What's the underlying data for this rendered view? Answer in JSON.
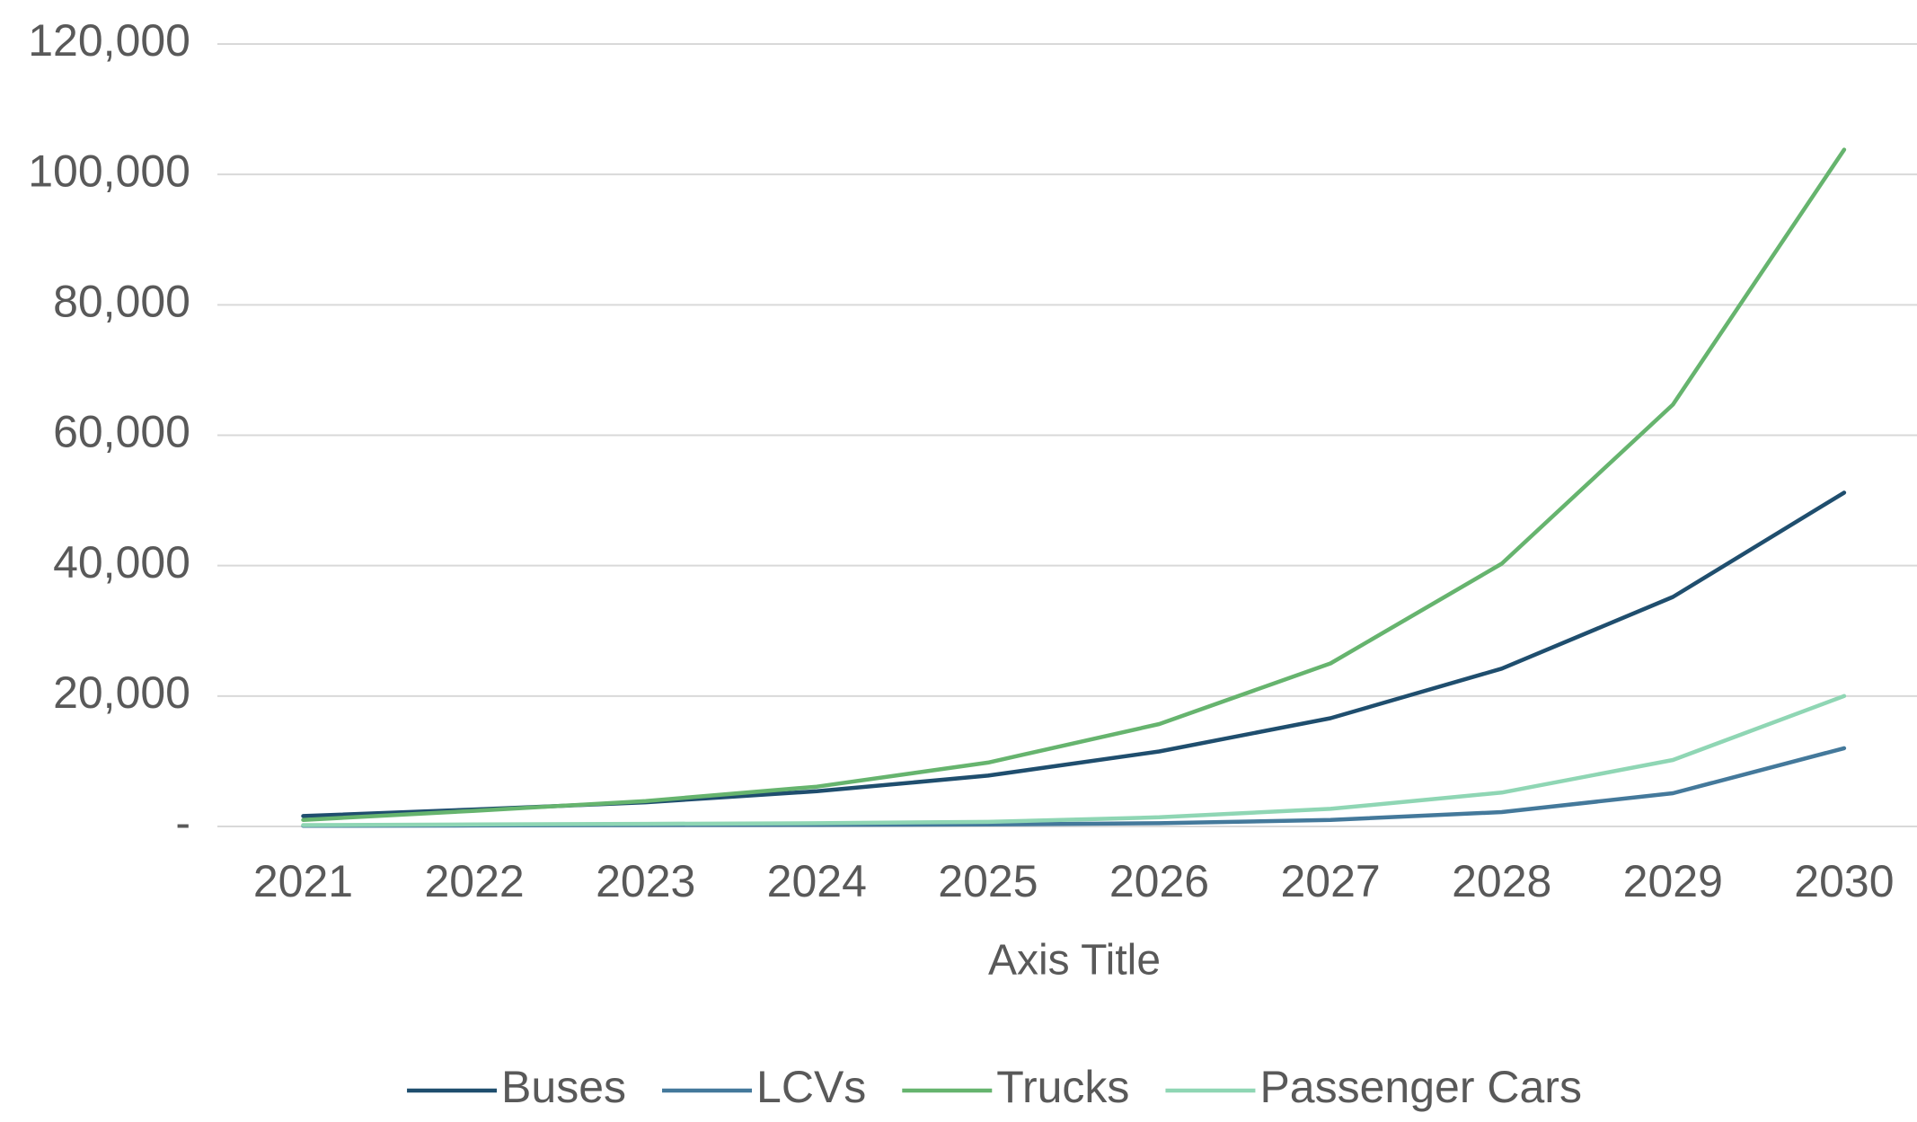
{
  "chart_data": {
    "type": "line",
    "x_axis_title": "Axis Title",
    "categories": [
      "2021",
      "2022",
      "2023",
      "2024",
      "2025",
      "2026",
      "2027",
      "2028",
      "2029",
      "2030"
    ],
    "series": [
      {
        "name": "Buses",
        "color": "#1f4e6e",
        "values": [
          1600,
          2600,
          3700,
          5400,
          7800,
          11500,
          16600,
          24200,
          35200,
          51200
        ]
      },
      {
        "name": "LCVs",
        "color": "#44799b",
        "values": [
          100,
          150,
          200,
          250,
          300,
          500,
          1000,
          2200,
          5100,
          12000
        ]
      },
      {
        "name": "Trucks",
        "color": "#66b46e",
        "values": [
          1000,
          2400,
          3900,
          6100,
          9800,
          15700,
          25000,
          40300,
          64700,
          103800
        ]
      },
      {
        "name": "Passenger Cars",
        "color": "#8fd6b4",
        "values": [
          200,
          300,
          400,
          500,
          700,
          1400,
          2700,
          5200,
          10200,
          20000
        ]
      }
    ],
    "ylim": [
      0,
      120000
    ],
    "yticks": [
      {
        "value": 0,
        "label": "-"
      },
      {
        "value": 20000,
        "label": "20,000"
      },
      {
        "value": 40000,
        "label": "40,000"
      },
      {
        "value": 60000,
        "label": "60,000"
      },
      {
        "value": 80000,
        "label": "80,000"
      },
      {
        "value": 100000,
        "label": "100,000"
      },
      {
        "value": 120000,
        "label": "120,000"
      }
    ],
    "grid": true,
    "legend": "bottom"
  }
}
